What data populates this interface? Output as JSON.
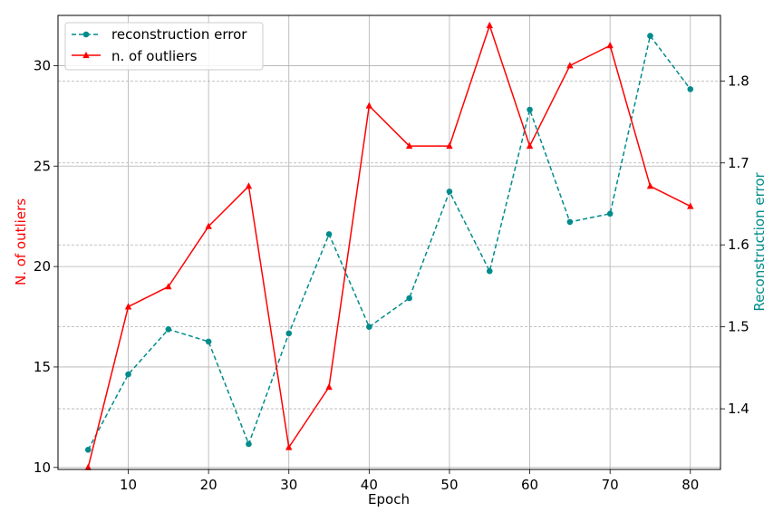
{
  "chart_data": {
    "type": "line",
    "x": [
      5,
      10,
      15,
      20,
      25,
      30,
      35,
      40,
      45,
      50,
      55,
      60,
      65,
      70,
      75,
      80
    ],
    "xlabel": "Epoch",
    "xlim": [
      1.25,
      83.75
    ],
    "xticks": [
      10,
      20,
      30,
      40,
      50,
      60,
      70,
      80
    ],
    "grid": true,
    "legend_position": "top-left",
    "series": [
      {
        "name": "reconstruction error",
        "axis": "right",
        "color": "#008b8b",
        "linestyle": "dashed",
        "marker": "circle",
        "values": [
          1.35,
          1.442,
          1.497,
          1.482,
          1.357,
          1.492,
          1.613,
          1.5,
          1.535,
          1.665,
          1.568,
          1.765,
          1.628,
          1.638,
          1.855,
          1.79
        ]
      },
      {
        "name": "n. of outliers",
        "axis": "left",
        "color": "#ff0000",
        "linestyle": "solid",
        "marker": "triangle",
        "values": [
          10,
          18,
          19,
          22,
          24,
          11,
          14,
          28,
          26,
          26,
          32,
          26,
          30,
          31,
          24,
          23
        ]
      }
    ],
    "left_axis": {
      "label": "N. of outliers",
      "color": "#ff0000",
      "ylim": [
        9.9,
        32.5
      ],
      "ticks": [
        10,
        15,
        20,
        25,
        30
      ]
    },
    "right_axis": {
      "label": "Reconstruction error",
      "color": "#008b8b",
      "ylim": [
        1.326,
        1.88
      ],
      "ticks": [
        1.4,
        1.5,
        1.6,
        1.7,
        1.8
      ]
    }
  }
}
